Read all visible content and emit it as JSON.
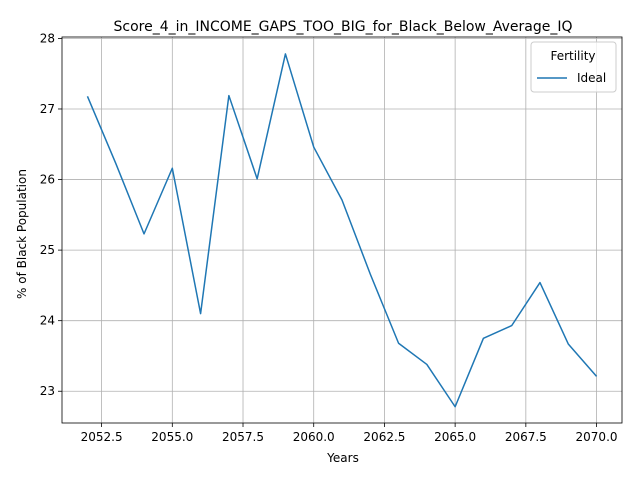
{
  "chart_data": {
    "type": "line",
    "title": "Score_4_in_INCOME_GAPS_TOO_BIG_for_Black_Below_Average_IQ",
    "xlabel": "Years",
    "ylabel": "% of Black Population",
    "xlim": [
      2051.1,
      2070.9
    ],
    "ylim": [
      22.55,
      28.02
    ],
    "xticks": [
      2052.5,
      2055.0,
      2057.5,
      2060.0,
      2062.5,
      2065.0,
      2067.5,
      2070.0
    ],
    "xtick_labels": [
      "2052.5",
      "2055.0",
      "2057.5",
      "2060.0",
      "2062.5",
      "2065.0",
      "2067.5",
      "2070.0"
    ],
    "yticks": [
      23,
      24,
      25,
      26,
      27,
      28
    ],
    "ytick_labels": [
      "23",
      "24",
      "25",
      "26",
      "27",
      "28"
    ],
    "grid": true,
    "legend": {
      "title": "Fertility",
      "position": "top-right"
    },
    "series": [
      {
        "name": "Ideal",
        "color": "#1f77b4",
        "x": [
          2052,
          2053,
          2054,
          2055,
          2056,
          2057,
          2058,
          2059,
          2060,
          2061,
          2062,
          2063,
          2064,
          2065,
          2066,
          2067,
          2068,
          2069,
          2070
        ],
        "y": [
          27.18,
          26.23,
          25.23,
          26.16,
          24.1,
          27.19,
          26.01,
          27.78,
          26.46,
          25.71,
          24.66,
          23.68,
          23.38,
          22.78,
          23.75,
          23.93,
          24.54,
          23.67,
          23.21
        ]
      }
    ]
  }
}
